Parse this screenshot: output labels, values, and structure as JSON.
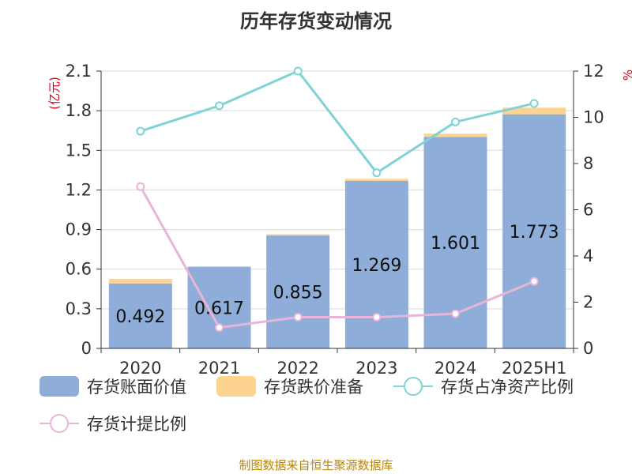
{
  "chart_data": {
    "type": "bar",
    "title": "历年存货变动情况",
    "categories": [
      "2020",
      "2021",
      "2022",
      "2023",
      "2024",
      "2025H1"
    ],
    "y_left": {
      "unit_label": "(亿元)",
      "ylim": [
        0,
        2.1
      ],
      "ticks": [
        "0",
        "0.3",
        "0.6",
        "0.9",
        "1.2",
        "1.5",
        "1.8",
        "2.1"
      ]
    },
    "y_right": {
      "unit_label": "%",
      "ylim": [
        0,
        12
      ],
      "ticks": [
        "0",
        "2",
        "4",
        "6",
        "8",
        "10",
        "12"
      ]
    },
    "series": [
      {
        "name": "存货账面价值",
        "type": "bar",
        "stack": "inv",
        "axis": "left",
        "color": "#8fadd9",
        "values": [
          0.492,
          0.617,
          0.855,
          1.269,
          1.601,
          1.773
        ],
        "labels": [
          "0.492",
          "0.617",
          "0.855",
          "1.269",
          "1.601",
          "1.773"
        ]
      },
      {
        "name": "存货跌价准备",
        "type": "bar",
        "stack": "inv",
        "axis": "left",
        "color": "#fcd48f",
        "values": [
          0.035,
          0.005,
          0.01,
          0.015,
          0.025,
          0.05
        ]
      },
      {
        "name": "存货占净资产比例",
        "type": "line",
        "axis": "right",
        "color": "#7fd3d4",
        "values": [
          9.4,
          10.5,
          12.0,
          7.6,
          9.8,
          10.6
        ]
      },
      {
        "name": "存货计提比例",
        "type": "line",
        "axis": "right",
        "color": "#e8b4d8",
        "values": [
          7.0,
          0.9,
          1.35,
          1.35,
          1.5,
          2.9
        ]
      }
    ],
    "grid": true,
    "legend_position": "bottom",
    "source": "制图数据来自恒生聚源数据库"
  }
}
